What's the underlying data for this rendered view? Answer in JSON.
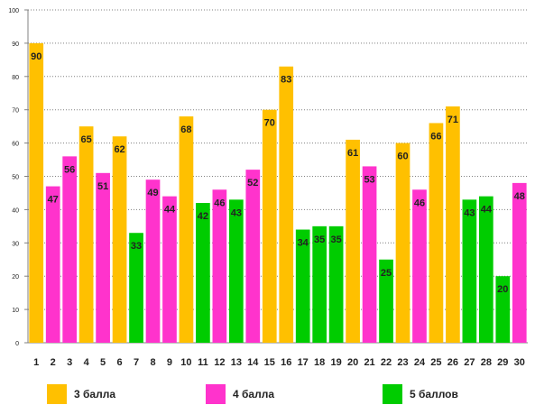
{
  "chart_data": {
    "type": "bar",
    "title": "",
    "xlabel": "",
    "ylabel": "",
    "ylim": [
      0,
      100
    ],
    "yticks": [
      0,
      10,
      20,
      30,
      40,
      50,
      60,
      70,
      80,
      90,
      100
    ],
    "grid": true,
    "legend_position": "bottom",
    "categories": [
      "1",
      "2",
      "3",
      "4",
      "5",
      "6",
      "7",
      "8",
      "9",
      "10",
      "11",
      "12",
      "13",
      "14",
      "15",
      "16",
      "17",
      "18",
      "19",
      "20",
      "21",
      "22",
      "23",
      "24",
      "25",
      "26",
      "27",
      "28",
      "29",
      "30"
    ],
    "values": [
      90,
      47,
      56,
      65,
      51,
      62,
      33,
      49,
      44,
      68,
      42,
      46,
      43,
      52,
      70,
      83,
      34,
      35,
      35,
      61,
      53,
      25,
      60,
      46,
      66,
      71,
      43,
      44,
      20,
      48
    ],
    "groups": [
      "3 балла",
      "4 балла",
      "4 балла",
      "3 балла",
      "4 балла",
      "3 балла",
      "5 баллов",
      "4 балла",
      "4 балла",
      "3 балла",
      "5 баллов",
      "4 балла",
      "5 баллов",
      "4 балла",
      "3 балла",
      "3 балла",
      "5 баллов",
      "5 баллов",
      "5 баллов",
      "3 балла",
      "4 балла",
      "5 баллов",
      "3 балла",
      "4 балла",
      "3 балла",
      "3 балла",
      "5 баллов",
      "5 баллов",
      "5 баллов",
      "4 балла"
    ],
    "legend": [
      {
        "name": "3 балла",
        "color": "#FFC000"
      },
      {
        "name": "4 балла",
        "color": "#FF33CC"
      },
      {
        "name": "5 баллов",
        "color": "#00CC00"
      }
    ],
    "gridline_color": "#808080",
    "label_color": "#222222"
  }
}
